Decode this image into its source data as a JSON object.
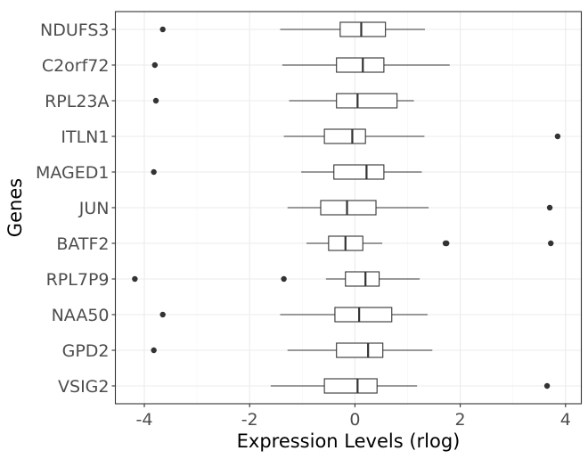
{
  "chart_data": {
    "type": "boxplot",
    "orientation": "horizontal",
    "title": "",
    "xlabel": "Expression Levels (rlog)",
    "ylabel": "Genes",
    "xlim": [
      -4.55,
      4.3
    ],
    "xticks": [
      -4,
      -2,
      0,
      2,
      4
    ],
    "xtick_labels": [
      "-4",
      "-2",
      "0",
      "2",
      "4"
    ],
    "grid": true,
    "categories": [
      "NDUFS3",
      "C2orf72",
      "RPL23A",
      "ITLN1",
      "MAGED1",
      "JUN",
      "BATF2",
      "RPL7P9",
      "NAA50",
      "GPD2",
      "VSIG2"
    ],
    "boxes": [
      {
        "gene": "NDUFS3",
        "whisker_low": -1.42,
        "q1": -0.28,
        "median": 0.12,
        "q3": 0.58,
        "whisker_high": 1.33,
        "outliers": [
          -3.65
        ]
      },
      {
        "gene": "C2orf72",
        "whisker_low": -1.38,
        "q1": -0.35,
        "median": 0.15,
        "q3": 0.55,
        "whisker_high": 1.8,
        "outliers": [
          -3.8
        ]
      },
      {
        "gene": "RPL23A",
        "whisker_low": -1.25,
        "q1": -0.35,
        "median": 0.05,
        "q3": 0.8,
        "whisker_high": 1.12,
        "outliers": [
          -3.78
        ]
      },
      {
        "gene": "ITLN1",
        "whisker_low": -1.35,
        "q1": -0.58,
        "median": -0.05,
        "q3": 0.2,
        "whisker_high": 1.32,
        "outliers": [
          3.85
        ]
      },
      {
        "gene": "MAGED1",
        "whisker_low": -1.02,
        "q1": -0.4,
        "median": 0.22,
        "q3": 0.55,
        "whisker_high": 1.27,
        "outliers": [
          -3.82
        ]
      },
      {
        "gene": "JUN",
        "whisker_low": -1.28,
        "q1": -0.65,
        "median": -0.15,
        "q3": 0.4,
        "whisker_high": 1.4,
        "outliers": [
          3.7
        ]
      },
      {
        "gene": "BATF2",
        "whisker_low": -0.92,
        "q1": -0.5,
        "median": -0.18,
        "q3": 0.15,
        "whisker_high": 0.52,
        "outliers": [
          1.72,
          1.74,
          3.72
        ]
      },
      {
        "gene": "RPL7P9",
        "whisker_low": -0.55,
        "q1": -0.18,
        "median": 0.2,
        "q3": 0.46,
        "whisker_high": 1.23,
        "outliers": [
          -4.18,
          -1.35
        ]
      },
      {
        "gene": "NAA50",
        "whisker_low": -1.42,
        "q1": -0.38,
        "median": 0.08,
        "q3": 0.7,
        "whisker_high": 1.38,
        "outliers": [
          -3.65
        ]
      },
      {
        "gene": "GPD2",
        "whisker_low": -1.28,
        "q1": -0.35,
        "median": 0.25,
        "q3": 0.53,
        "whisker_high": 1.47,
        "outliers": [
          -3.82
        ]
      },
      {
        "gene": "VSIG2",
        "whisker_low": -1.6,
        "q1": -0.58,
        "median": 0.05,
        "q3": 0.42,
        "whisker_high": 1.18,
        "outliers": [
          3.65
        ]
      }
    ],
    "colors": {
      "box_fill": "#ffffff",
      "stroke": "#333333",
      "grid": "#ebebeb",
      "background": "#ffffff"
    }
  }
}
